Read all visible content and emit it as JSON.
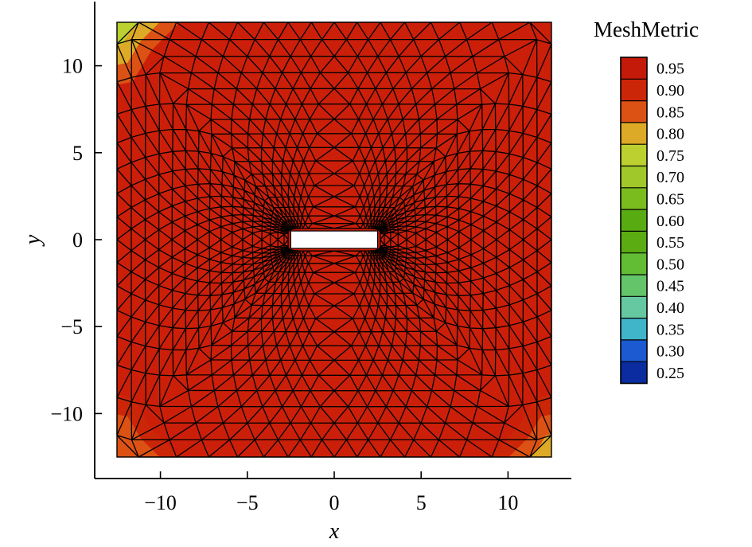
{
  "chart_data": {
    "type": "heatmap",
    "subtype": "triangular-mesh-quality-contour",
    "xlabel": "x",
    "ylabel": "y",
    "xlim": [
      -12.6,
      12.6
    ],
    "ylim": [
      -12.6,
      12.6
    ],
    "x_ticks": [
      -10,
      -5,
      0,
      5,
      10
    ],
    "y_ticks": [
      -10,
      -5,
      0,
      5,
      10
    ],
    "x_tick_labels": [
      "−10",
      "−5",
      "0",
      "5",
      "10"
    ],
    "y_tick_labels": [
      "−10",
      "−5",
      "0",
      "5",
      "10"
    ],
    "domain": {
      "xmin": -12.5,
      "xmax": 12.5,
      "ymin": -12.5,
      "ymax": 12.5
    },
    "hole": {
      "xmin": -2.5,
      "xmax": 2.5,
      "ymin": -0.5,
      "ymax": 0.5
    },
    "grid": false,
    "mesh_edge_color": "#000000",
    "dominant_value": 0.95,
    "corner_regions": [
      {
        "corner": "top-left",
        "values": [
          0.85,
          0.8,
          0.75
        ]
      },
      {
        "corner": "bottom-left",
        "values": [
          0.9,
          0.85
        ]
      },
      {
        "corner": "bottom-right",
        "values": [
          0.9,
          0.85,
          0.8
        ]
      }
    ],
    "colorbar": {
      "title": "MeshMetric",
      "placement": "right",
      "levels": [
        0.95,
        0.9,
        0.85,
        0.8,
        0.75,
        0.7,
        0.65,
        0.6,
        0.55,
        0.5,
        0.45,
        0.4,
        0.35,
        0.3,
        0.25
      ],
      "labels": [
        "0.95",
        "0.90",
        "0.85",
        "0.80",
        "0.75",
        "0.70",
        "0.65",
        "0.60",
        "0.55",
        "0.50",
        "0.45",
        "0.40",
        "0.35",
        "0.30",
        "0.25"
      ],
      "colors": [
        "#c41a0a",
        "#cc2608",
        "#dc5214",
        "#dcaa26",
        "#bcd030",
        "#a0c82a",
        "#7abc1e",
        "#58ac12",
        "#5aac12",
        "#62bc34",
        "#64c46a",
        "#66c8a0",
        "#40b4c8",
        "#1c5ad2",
        "#0a2ca0"
      ]
    },
    "colors": {
      "background": "#ffffff",
      "mesh_fill": "#cc1f0a",
      "hole_fill": "#ffffff"
    }
  }
}
